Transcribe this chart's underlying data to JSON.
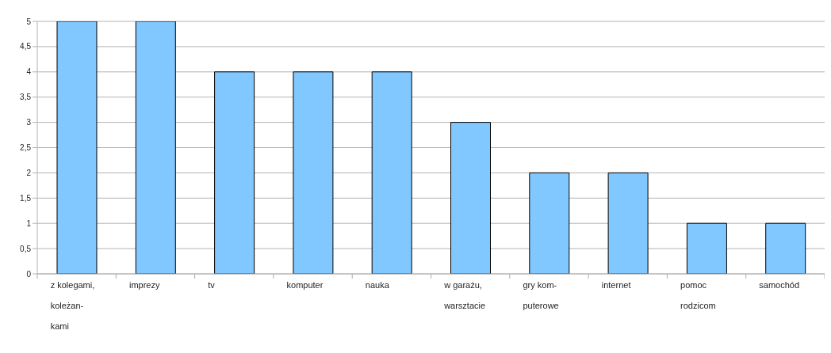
{
  "chart_data": {
    "type": "bar",
    "categories": [
      "z kolegami,\nkoleżan-\nkami",
      "imprezy",
      "tv",
      "komputer",
      "nauka",
      "w garażu,\nwarsztacie",
      "gry kom-\nputerowe",
      "internet",
      "pomoc\nrodzicom",
      "samochód"
    ],
    "values": [
      5,
      5,
      4,
      4,
      4,
      3,
      2,
      2,
      1,
      1
    ],
    "color": "#80c8ff",
    "ylim": [
      0,
      5
    ],
    "yticks": [
      0,
      {
        "value": 0.5,
        "label": "0,5"
      },
      1,
      {
        "value": 1.5,
        "label": "1,5"
      },
      2,
      {
        "value": 2.5,
        "label": "2,5"
      },
      3,
      {
        "value": 3.5,
        "label": "3,5"
      },
      4,
      {
        "value": 4.5,
        "label": "4,5"
      },
      5
    ],
    "grid": "y",
    "legend": false
  }
}
